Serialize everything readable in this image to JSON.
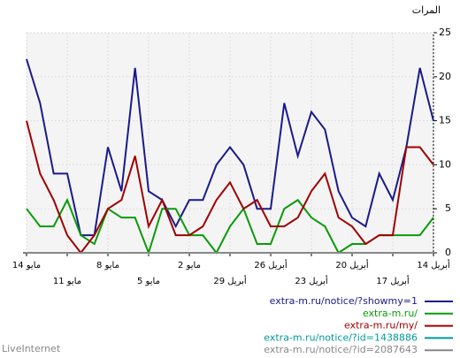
{
  "chart_data": {
    "type": "line",
    "y_label": "المرات",
    "footer": "LiveInternet",
    "categories": [
      "14 أبريل",
      null,
      null,
      "17 أبريل",
      null,
      null,
      "20 أبريل",
      null,
      null,
      "23 أبريل",
      null,
      null,
      "26 أبريل",
      null,
      null,
      "29 أبريل",
      null,
      null,
      "2 مايو",
      null,
      null,
      "5 مايو",
      null,
      null,
      "8 مايو",
      null,
      null,
      "11 مايو",
      null,
      null,
      "14 مايو"
    ],
    "ylim": [
      0,
      25
    ],
    "yticks": [
      0,
      5,
      10,
      15,
      20,
      25
    ],
    "grid": true,
    "series": [
      {
        "name": "extra-m.ru/notice/?showmy=1",
        "color": "#1a1a8c",
        "values": [
          15,
          21,
          12,
          6,
          9,
          3,
          4,
          7,
          14,
          16,
          11,
          17,
          5,
          5,
          10,
          12,
          10,
          6,
          6,
          3,
          6,
          7,
          21,
          7,
          12,
          2,
          2,
          9,
          9,
          17,
          22
        ]
      },
      {
        "name": "extra-m.ru/",
        "color": "#0a9a0a",
        "values": [
          4,
          2,
          2,
          2,
          2,
          1,
          1,
          0,
          3,
          4,
          6,
          5,
          1,
          1,
          5,
          3,
          0,
          2,
          2,
          5,
          5,
          0,
          4,
          4,
          5,
          1,
          2,
          6,
          3,
          3,
          5
        ]
      },
      {
        "name": "extra-m.ru/my/",
        "color": "#a00000",
        "values": [
          10,
          12,
          12,
          2,
          2,
          1,
          3,
          4,
          9,
          7,
          4,
          3,
          3,
          6,
          5,
          8,
          6,
          3,
          2,
          2,
          6,
          3,
          11,
          6,
          5,
          2,
          0,
          2,
          6,
          9,
          15
        ]
      },
      {
        "name": "extra-m.ru/notice/?id=1438886",
        "color": "#009999",
        "values": [
          0,
          0,
          0,
          0,
          0,
          0,
          0,
          0,
          0,
          0,
          0,
          0,
          0,
          0,
          0,
          0,
          0,
          0,
          0,
          0,
          0,
          0,
          0,
          0,
          0,
          0,
          0,
          0,
          0,
          0,
          0
        ]
      },
      {
        "name": "extra-m.ru/notice/?id=2087643",
        "color": "#888888",
        "values": [
          0,
          0,
          0,
          0,
          0,
          0,
          0,
          0,
          0,
          0,
          0,
          0,
          0,
          0,
          0,
          0,
          0,
          0,
          0,
          0,
          0,
          0,
          0,
          0,
          0,
          0,
          0,
          0,
          0,
          0,
          0
        ]
      }
    ]
  }
}
